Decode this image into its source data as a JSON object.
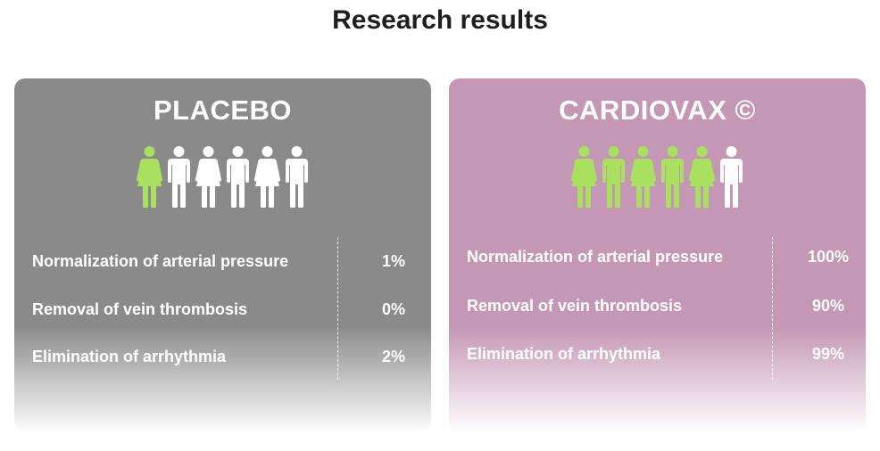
{
  "title": "Research results",
  "colors": {
    "placebo_bg": "#8a8a8a",
    "cardiovax_bg": "#c497b5",
    "highlight": "#a9e05f",
    "figure": "#ffffff"
  },
  "cards": [
    {
      "name": "PLACEBO",
      "figures": [
        {
          "type": "female",
          "highlighted": true
        },
        {
          "type": "male",
          "highlighted": false
        },
        {
          "type": "female",
          "highlighted": false
        },
        {
          "type": "male",
          "highlighted": false
        },
        {
          "type": "female",
          "highlighted": false
        },
        {
          "type": "male",
          "highlighted": false
        }
      ],
      "rows": [
        {
          "label": "Normalization of arterial pressure",
          "value": "1%"
        },
        {
          "label": "Removal of vein thrombosis",
          "value": "0%"
        },
        {
          "label": "Elimination of arrhythmia",
          "value": "2%"
        }
      ]
    },
    {
      "name": "CARDIOVAX ©",
      "figures": [
        {
          "type": "female",
          "highlighted": true
        },
        {
          "type": "male",
          "highlighted": true
        },
        {
          "type": "female",
          "highlighted": true
        },
        {
          "type": "male",
          "highlighted": true
        },
        {
          "type": "female",
          "highlighted": true
        },
        {
          "type": "male",
          "highlighted": false
        }
      ],
      "rows": [
        {
          "label": "Normalization of arterial pressure",
          "value": "100%"
        },
        {
          "label": "Removal of vein thrombosis",
          "value": "90%"
        },
        {
          "label": "Elimination of arrhythmia",
          "value": "99%"
        }
      ]
    }
  ]
}
